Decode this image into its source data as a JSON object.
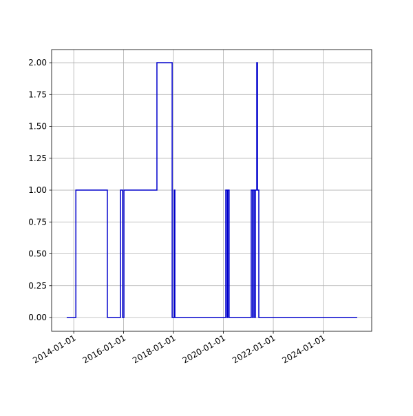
{
  "chart_data": {
    "type": "line",
    "drawstyle": "steps-post",
    "grid": true,
    "x": [
      "2013-09-20",
      "2014-02-01",
      "2015-05-08",
      "2015-11-16",
      "2015-12-17",
      "2016-01-06",
      "2017-05-03",
      "2017-12-12",
      "2018-01-11",
      "2018-01-21",
      "2020-02-05",
      "2020-02-25",
      "2020-03-07",
      "2020-03-25",
      "2021-02-12",
      "2021-03-04",
      "2021-03-14",
      "2021-04-03",
      "2021-04-13",
      "2021-05-04",
      "2021-05-14",
      "2021-06-03",
      "2025-05-14"
    ],
    "series": [
      {
        "color": "#0000cc",
        "values": [
          0,
          1,
          0,
          1,
          0,
          1,
          2,
          0,
          1,
          0,
          1,
          0,
          1,
          0,
          1,
          0,
          1,
          0,
          1,
          2,
          1,
          0,
          0
        ]
      }
    ],
    "xlim": [
      "2013-02-11",
      "2025-12-12"
    ],
    "xticks": [
      "2014-01-01",
      "2016-01-01",
      "2018-01-01",
      "2020-01-01",
      "2022-01-01",
      "2024-01-01"
    ],
    "ylim": [
      -0.108,
      2.103
    ],
    "yticks": [
      {
        "value": 0,
        "label": "0.00"
      },
      {
        "value": 0.25,
        "label": "0.25"
      },
      {
        "value": 0.5,
        "label": "0.50"
      },
      {
        "value": 0.75,
        "label": "0.75"
      },
      {
        "value": 1,
        "label": "1.00"
      },
      {
        "value": 1.25,
        "label": "1.25"
      },
      {
        "value": 1.5,
        "label": "1.50"
      },
      {
        "value": 1.75,
        "label": "1.75"
      },
      {
        "value": 2,
        "label": "2.00"
      }
    ]
  }
}
